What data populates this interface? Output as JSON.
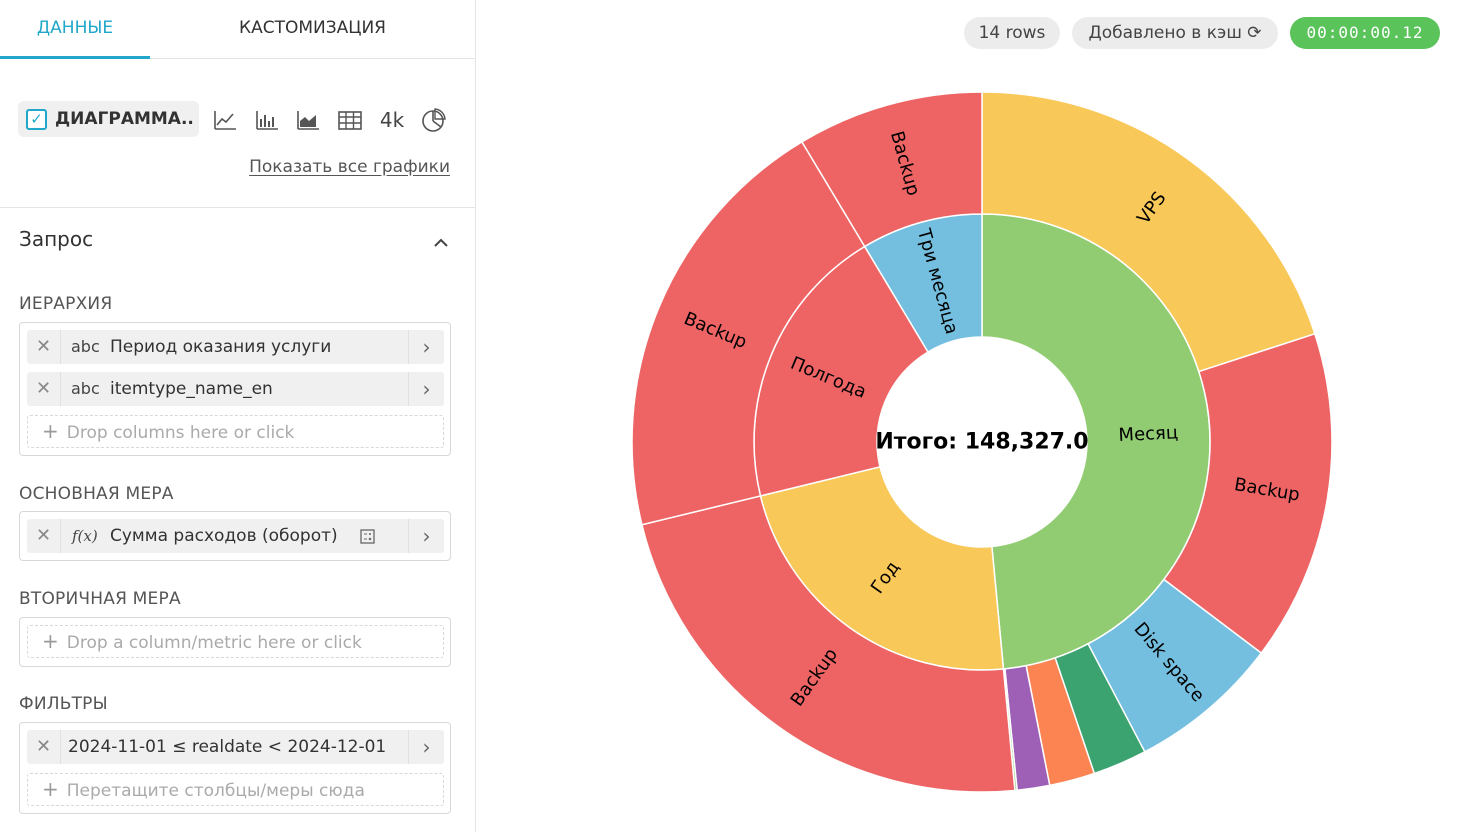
{
  "tabs": {
    "data": "ДАННЫЕ",
    "customize": "КАСТОМИЗАЦИЯ"
  },
  "viz": {
    "selected": "ДИАГРАММА...",
    "icons": [
      "line-chart-icon",
      "bar-chart-icon",
      "area-chart-icon",
      "table-icon",
      "big-number-icon",
      "pie-chart-icon"
    ],
    "big_number_label": "4k",
    "show_all": "Показать все графики"
  },
  "query": {
    "title": "Запрос",
    "hierarchy": {
      "label": "ИЕРАРХИЯ",
      "items": [
        {
          "type": "abc",
          "name": "Период оказания услуги"
        },
        {
          "type": "abc",
          "name": "itemtype_name_en"
        }
      ],
      "placeholder": "Drop columns here or click"
    },
    "primary_metric": {
      "label": "ОСНОВНАЯ МЕРА",
      "type": "f(x)",
      "name": "Сумма расходов (оборот)"
    },
    "secondary_metric": {
      "label": "ВТОРИЧНАЯ МЕРА",
      "placeholder": "Drop a column/metric here or click"
    },
    "filters": {
      "label": "ФИЛЬТРЫ",
      "items": [
        "2024-11-01 ≤ realdate < 2024-12-01"
      ],
      "placeholder": "Перетащите столбцы/меры сюда"
    }
  },
  "status": {
    "rows": "14 rows",
    "cache": "Добавлено в кэш",
    "timer": "00:00:00.12"
  },
  "colors": {
    "accent": "#20a7c9",
    "green": "#92cc72",
    "yellow": "#f8c858",
    "red": "#ee6464",
    "blue": "#74bfdf",
    "purple": "#9e5fb7",
    "orange": "#fc8452",
    "teal": "#3aa370",
    "timer_green": "#5ac35a"
  },
  "chart_data": {
    "type": "sunburst",
    "total_label": "Итого: 148,327.0",
    "total": 148327.0,
    "levels": [
      "Период оказания услуги",
      "itemtype_name_en"
    ],
    "inner": [
      {
        "name": "Месяц",
        "share": 0.485,
        "color": "#92cc72"
      },
      {
        "name": "Год",
        "share": 0.227,
        "color": "#f8c858"
      },
      {
        "name": "Полгода",
        "share": 0.202,
        "color": "#ee6464"
      },
      {
        "name": "Три месяца",
        "share": 0.086,
        "color": "#74bfdf"
      }
    ],
    "outer": [
      {
        "name": "VPS",
        "parent": "Месяц",
        "share": 0.2,
        "color": "#f8c858",
        "label": "VPS"
      },
      {
        "name": "Backup",
        "parent": "Месяц",
        "share": 0.153,
        "color": "#ee6464",
        "label": "Backup"
      },
      {
        "name": "Disk space",
        "parent": "Месяц",
        "share": 0.07,
        "color": "#74bfdf",
        "label": "Disk space"
      },
      {
        "name": "",
        "parent": "Месяц",
        "share": 0.025,
        "color": "#3aa370",
        "label": ""
      },
      {
        "name": "",
        "parent": "Месяц",
        "share": 0.021,
        "color": "#fc8452",
        "label": ""
      },
      {
        "name": "",
        "parent": "Месяц",
        "share": 0.015,
        "color": "#9e5fb7",
        "label": ""
      },
      {
        "name": "",
        "parent": "Месяц",
        "share": 0.001,
        "color": "#92cc72",
        "label": ""
      },
      {
        "name": "Backup",
        "parent": "Год",
        "share": 0.227,
        "color": "#ee6464",
        "label": "Backup"
      },
      {
        "name": "Backup",
        "parent": "Полгода",
        "share": 0.202,
        "color": "#ee6464",
        "label": "Backup"
      },
      {
        "name": "Backup",
        "parent": "Три месяца",
        "share": 0.086,
        "color": "#ee6464",
        "label": "Backup"
      }
    ]
  }
}
